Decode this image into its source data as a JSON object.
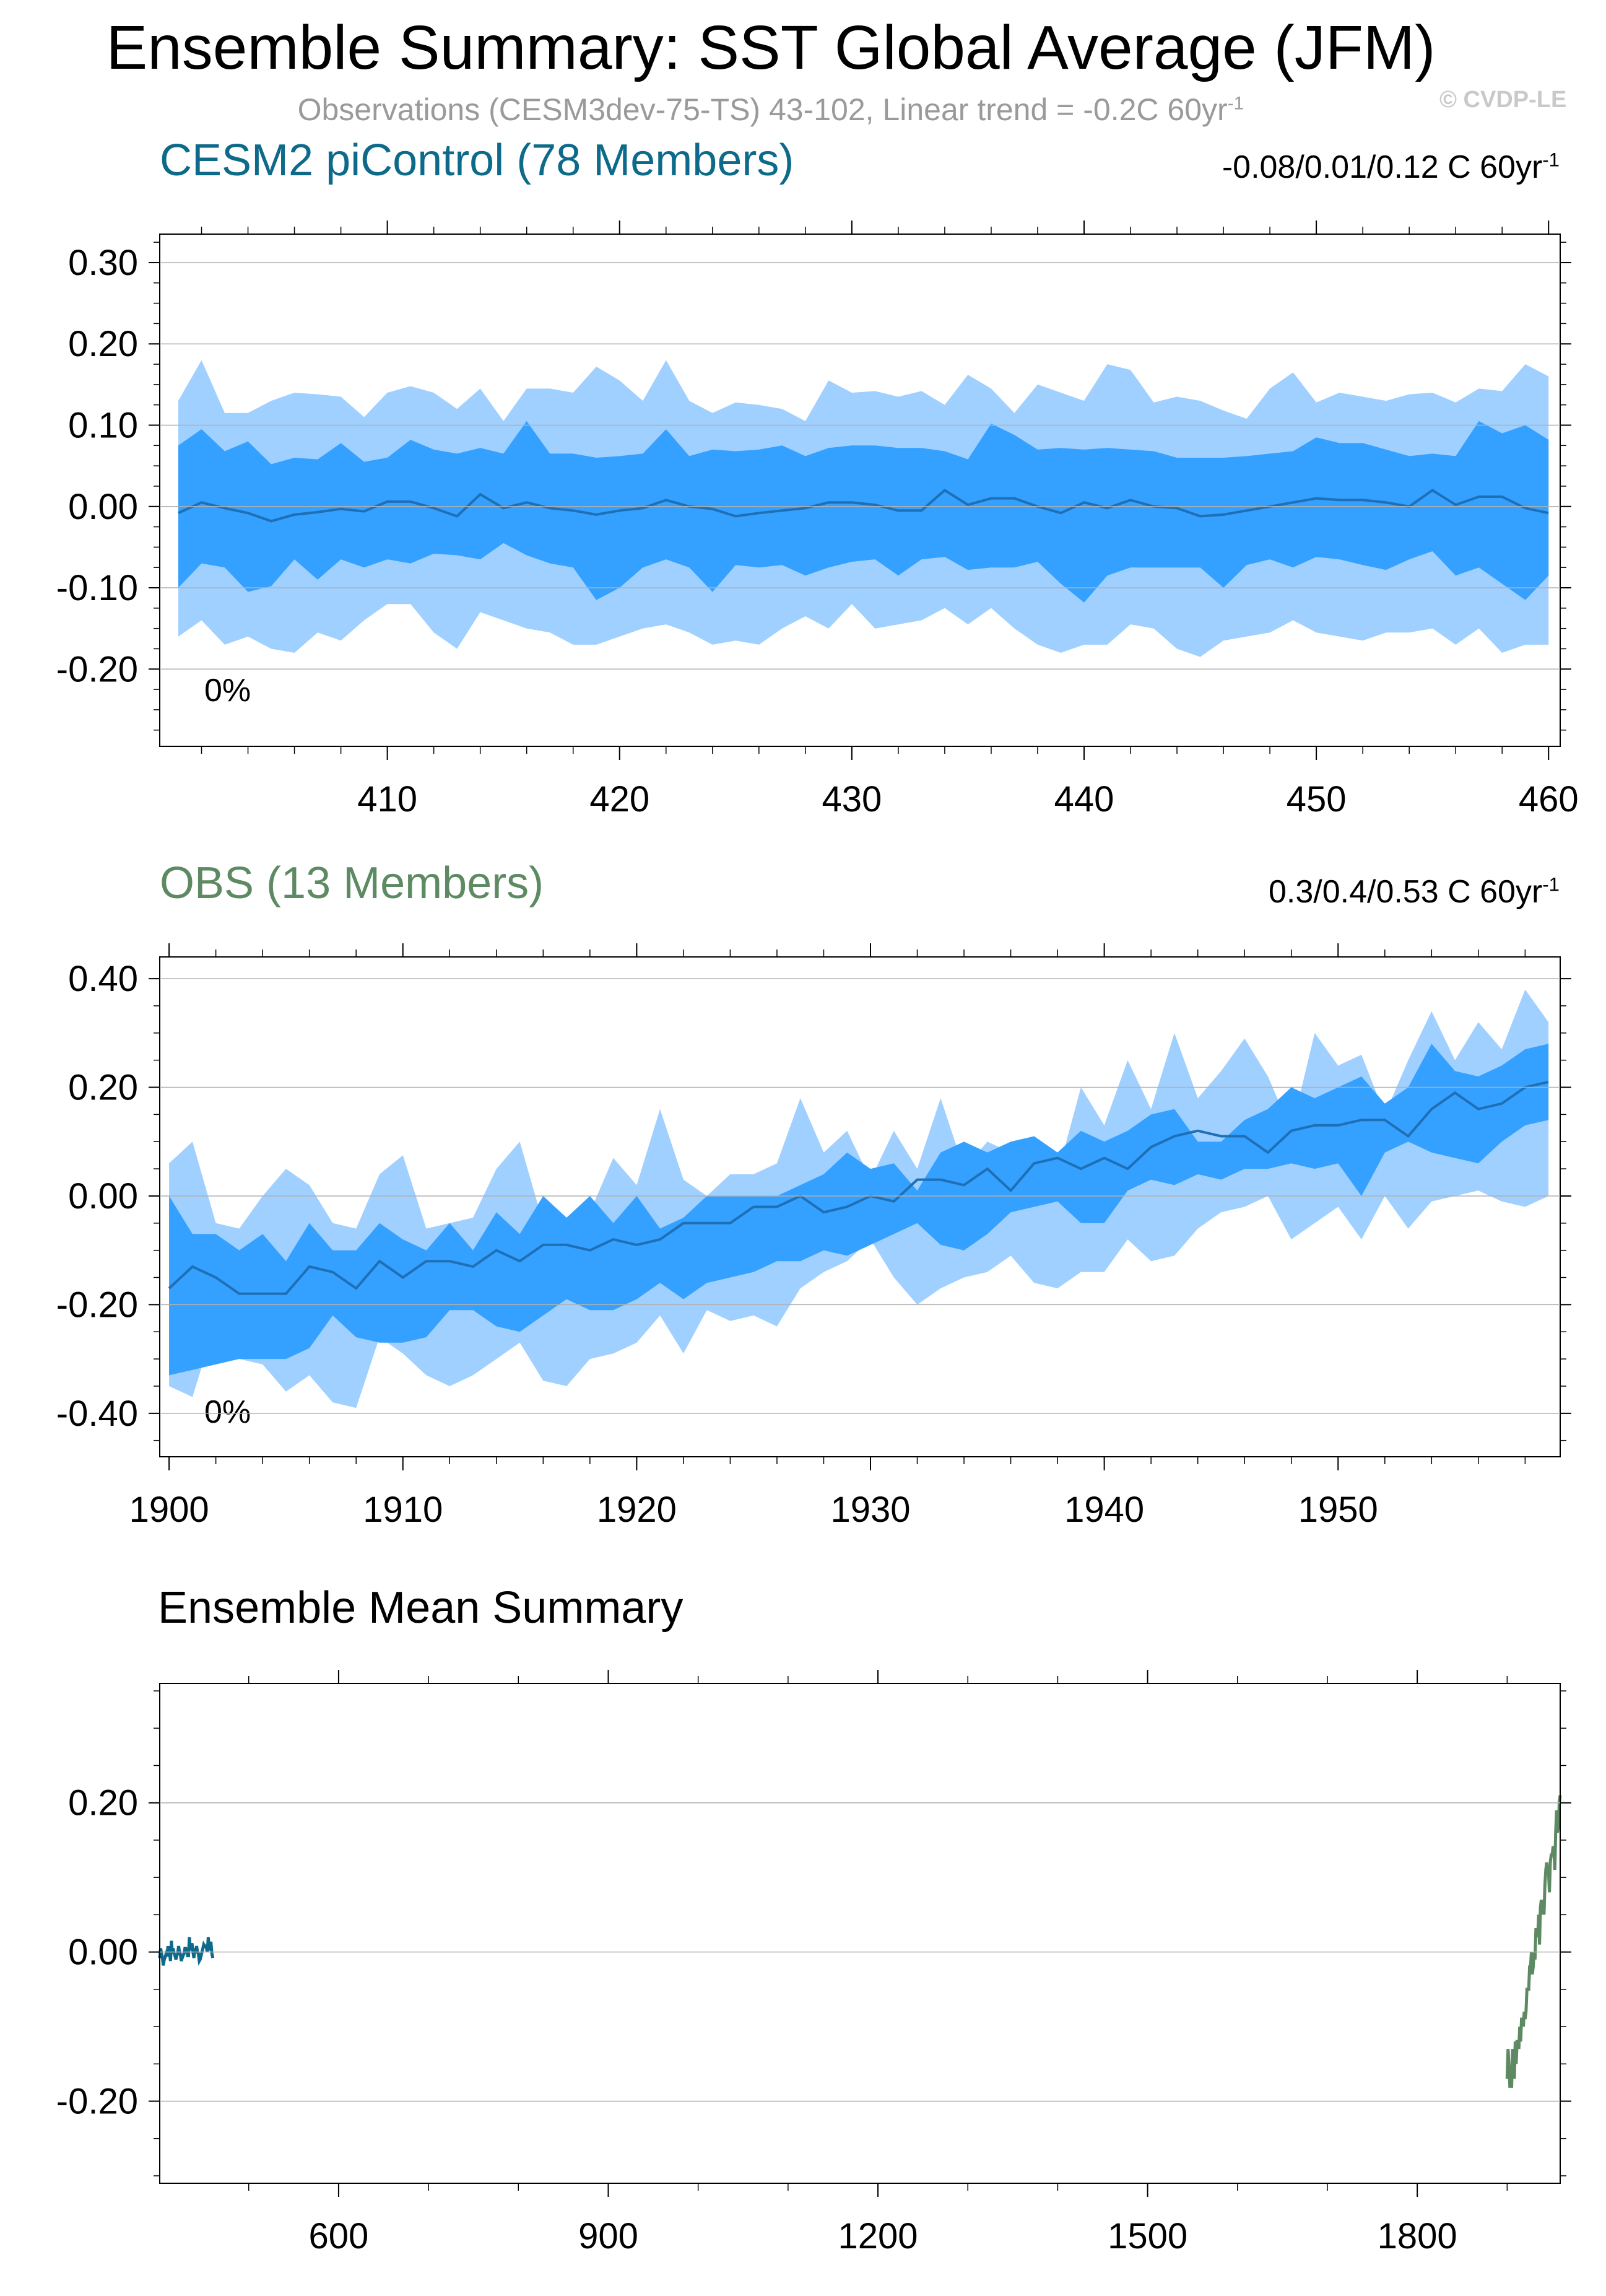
{
  "title": "Ensemble Summary: SST Global Average (JFM)",
  "subtitle": "Observations (CESM3dev-75-TS) 43-102, Linear trend = -0.2C 60yr",
  "subtitle_exp": "-1",
  "copyright": "© CVDP-LE",
  "colors": {
    "outer_band": "#9fd0ff",
    "inner_band": "#34a0ff",
    "mean_line": "#1f6fb5",
    "cesm_title": "#0e6a8a",
    "obs_title": "#5d8a62",
    "cesm_line": "#0e6a8a",
    "obs_line": "#5d8a62"
  },
  "panels": [
    {
      "title": "CESM2 piControl (78 Members)",
      "trend": "-0.08/0.01/0.12 C 60yr",
      "trend_exp": "-1",
      "percent": "0%"
    },
    {
      "title": "OBS (13 Members)",
      "trend": "0.3/0.4/0.53 C 60yr",
      "trend_exp": "-1",
      "percent": "0%"
    },
    {
      "title": "Ensemble Mean Summary"
    }
  ],
  "chart_data": [
    {
      "type": "area",
      "title": "CESM2 piControl (78 Members)",
      "x": [
        401,
        402,
        403,
        404,
        405,
        406,
        407,
        408,
        409,
        410,
        411,
        412,
        413,
        414,
        415,
        416,
        417,
        418,
        419,
        420,
        421,
        422,
        423,
        424,
        425,
        426,
        427,
        428,
        429,
        430,
        431,
        432,
        433,
        434,
        435,
        436,
        437,
        438,
        439,
        440,
        441,
        442,
        443,
        444,
        445,
        446,
        447,
        448,
        449,
        450,
        451,
        452,
        453,
        454,
        455,
        456,
        457,
        458,
        459,
        460
      ],
      "xlim": [
        400.2,
        460.5
      ],
      "ylim": [
        -0.295,
        0.335
      ],
      "xticks": [
        410,
        420,
        430,
        440,
        450,
        460
      ],
      "yticks": [
        -0.2,
        -0.1,
        0.0,
        0.1,
        0.2,
        0.3
      ],
      "ytick_labels": [
        "-0.20",
        "-0.10",
        "0.00",
        "0.10",
        "0.20",
        "0.30"
      ],
      "series": [
        {
          "role": "outer-upper",
          "values": [
            0.13,
            0.18,
            0.115,
            0.115,
            0.13,
            0.14,
            0.138,
            0.135,
            0.11,
            0.14,
            0.148,
            0.14,
            0.12,
            0.145,
            0.105,
            0.145,
            0.145,
            0.14,
            0.172,
            0.155,
            0.13,
            0.18,
            0.13,
            0.115,
            0.128,
            0.125,
            0.12,
            0.105,
            0.155,
            0.14,
            0.142,
            0.135,
            0.142,
            0.125,
            0.162,
            0.145,
            0.115,
            0.15,
            0.14,
            0.13,
            0.175,
            0.168,
            0.128,
            0.135,
            0.13,
            0.118,
            0.108,
            0.145,
            0.165,
            0.128,
            0.14,
            0.135,
            0.13,
            0.138,
            0.14,
            0.128,
            0.145,
            0.142,
            0.175,
            0.16
          ]
        },
        {
          "role": "inner-upper",
          "values": [
            0.075,
            0.095,
            0.068,
            0.08,
            0.052,
            0.06,
            0.058,
            0.078,
            0.055,
            0.06,
            0.082,
            0.07,
            0.065,
            0.072,
            0.065,
            0.105,
            0.065,
            0.065,
            0.06,
            0.062,
            0.065,
            0.095,
            0.062,
            0.07,
            0.068,
            0.07,
            0.075,
            0.062,
            0.072,
            0.075,
            0.075,
            0.072,
            0.072,
            0.068,
            0.058,
            0.102,
            0.088,
            0.07,
            0.072,
            0.07,
            0.072,
            0.07,
            0.068,
            0.06,
            0.06,
            0.06,
            0.062,
            0.065,
            0.068,
            0.085,
            0.078,
            0.078,
            0.07,
            0.062,
            0.065,
            0.062,
            0.105,
            0.09,
            0.1,
            0.082
          ]
        },
        {
          "role": "mean",
          "values": [
            -0.008,
            0.005,
            -0.002,
            -0.008,
            -0.018,
            -0.01,
            -0.007,
            -0.003,
            -0.006,
            0.006,
            0.006,
            -0.002,
            -0.012,
            0.015,
            -0.002,
            0.005,
            -0.002,
            -0.005,
            -0.01,
            -0.005,
            -0.002,
            0.008,
            0.0,
            -0.003,
            -0.012,
            -0.008,
            -0.005,
            -0.002,
            0.005,
            0.005,
            0.002,
            -0.005,
            -0.005,
            0.02,
            0.002,
            0.01,
            0.01,
            0.0,
            -0.008,
            0.005,
            -0.002,
            0.008,
            0.0,
            -0.002,
            -0.012,
            -0.01,
            -0.005,
            0.0,
            0.005,
            0.01,
            0.008,
            0.008,
            0.005,
            0.0,
            0.02,
            0.002,
            0.012,
            0.012,
            -0.002,
            -0.008
          ]
        },
        {
          "role": "inner-lower",
          "values": [
            -0.1,
            -0.07,
            -0.075,
            -0.105,
            -0.098,
            -0.065,
            -0.09,
            -0.065,
            -0.075,
            -0.065,
            -0.07,
            -0.058,
            -0.06,
            -0.065,
            -0.045,
            -0.06,
            -0.07,
            -0.075,
            -0.115,
            -0.1,
            -0.075,
            -0.065,
            -0.075,
            -0.105,
            -0.072,
            -0.075,
            -0.072,
            -0.085,
            -0.075,
            -0.068,
            -0.065,
            -0.085,
            -0.065,
            -0.062,
            -0.078,
            -0.075,
            -0.075,
            -0.068,
            -0.095,
            -0.118,
            -0.085,
            -0.075,
            -0.075,
            -0.075,
            -0.075,
            -0.1,
            -0.072,
            -0.065,
            -0.075,
            -0.062,
            -0.065,
            -0.072,
            -0.078,
            -0.065,
            -0.055,
            -0.085,
            -0.075,
            -0.095,
            -0.115,
            -0.085
          ]
        },
        {
          "role": "outer-lower",
          "values": [
            -0.16,
            -0.14,
            -0.17,
            -0.16,
            -0.175,
            -0.18,
            -0.155,
            -0.165,
            -0.14,
            -0.12,
            -0.12,
            -0.155,
            -0.175,
            -0.13,
            -0.14,
            -0.15,
            -0.155,
            -0.17,
            -0.17,
            -0.16,
            -0.15,
            -0.145,
            -0.155,
            -0.17,
            -0.165,
            -0.17,
            -0.15,
            -0.135,
            -0.15,
            -0.12,
            -0.15,
            -0.145,
            -0.14,
            -0.125,
            -0.145,
            -0.125,
            -0.15,
            -0.17,
            -0.18,
            -0.17,
            -0.17,
            -0.145,
            -0.15,
            -0.175,
            -0.185,
            -0.165,
            -0.16,
            -0.155,
            -0.14,
            -0.155,
            -0.16,
            -0.165,
            -0.155,
            -0.155,
            -0.15,
            -0.17,
            -0.15,
            -0.18,
            -0.17,
            -0.17
          ]
        }
      ]
    },
    {
      "type": "area",
      "title": "OBS (13 Members)",
      "x": [
        1900,
        1901,
        1902,
        1903,
        1904,
        1905,
        1906,
        1907,
        1908,
        1909,
        1910,
        1911,
        1912,
        1913,
        1914,
        1915,
        1916,
        1917,
        1918,
        1919,
        1920,
        1921,
        1922,
        1923,
        1924,
        1925,
        1926,
        1927,
        1928,
        1929,
        1930,
        1931,
        1932,
        1933,
        1934,
        1935,
        1936,
        1937,
        1938,
        1939,
        1940,
        1941,
        1942,
        1943,
        1944,
        1945,
        1946,
        1947,
        1948,
        1949,
        1950,
        1951,
        1952,
        1953,
        1954,
        1955,
        1956,
        1957,
        1958,
        1959
      ],
      "xlim": [
        1899.6,
        1959.5
      ],
      "ylim": [
        -0.48,
        0.44
      ],
      "xticks": [
        1900,
        1910,
        1920,
        1930,
        1940,
        1950
      ],
      "yticks": [
        -0.4,
        -0.2,
        0.0,
        0.2,
        0.4
      ],
      "ytick_labels": [
        "-0.40",
        "-0.20",
        "0.00",
        "0.20",
        "0.40"
      ],
      "series": [
        {
          "role": "outer-upper",
          "values": [
            0.06,
            0.1,
            -0.05,
            -0.06,
            0.0,
            0.05,
            0.02,
            -0.05,
            -0.06,
            0.04,
            0.075,
            -0.06,
            -0.05,
            -0.04,
            0.05,
            0.1,
            -0.05,
            -0.05,
            -0.03,
            0.07,
            0.02,
            0.16,
            0.03,
            0.0,
            0.04,
            0.04,
            0.06,
            0.18,
            0.08,
            0.12,
            0.03,
            0.12,
            0.05,
            0.18,
            0.05,
            0.1,
            0.08,
            0.1,
            0.04,
            0.2,
            0.13,
            0.25,
            0.16,
            0.3,
            0.18,
            0.23,
            0.29,
            0.22,
            0.12,
            0.3,
            0.24,
            0.26,
            0.15,
            0.25,
            0.34,
            0.25,
            0.32,
            0.27,
            0.38,
            0.32
          ]
        },
        {
          "role": "inner-upper",
          "values": [
            0.0,
            -0.07,
            -0.07,
            -0.1,
            -0.07,
            -0.12,
            -0.05,
            -0.1,
            -0.1,
            -0.05,
            -0.08,
            -0.1,
            -0.05,
            -0.1,
            -0.03,
            -0.07,
            0.0,
            -0.04,
            0.0,
            -0.05,
            0.0,
            -0.06,
            -0.04,
            0.0,
            0.0,
            0.0,
            0.0,
            0.02,
            0.04,
            0.08,
            0.05,
            0.06,
            0.01,
            0.08,
            0.1,
            0.08,
            0.1,
            0.11,
            0.08,
            0.12,
            0.1,
            0.12,
            0.15,
            0.16,
            0.1,
            0.1,
            0.14,
            0.16,
            0.2,
            0.18,
            0.2,
            0.22,
            0.17,
            0.2,
            0.28,
            0.23,
            0.22,
            0.24,
            0.27,
            0.28
          ]
        },
        {
          "role": "mean",
          "values": [
            -0.17,
            -0.13,
            -0.15,
            -0.18,
            -0.18,
            -0.18,
            -0.13,
            -0.14,
            -0.17,
            -0.12,
            -0.15,
            -0.12,
            -0.12,
            -0.13,
            -0.1,
            -0.12,
            -0.09,
            -0.09,
            -0.1,
            -0.08,
            -0.09,
            -0.08,
            -0.05,
            -0.05,
            -0.05,
            -0.02,
            -0.02,
            0.0,
            -0.03,
            -0.02,
            0.0,
            -0.01,
            0.03,
            0.03,
            0.02,
            0.05,
            0.01,
            0.06,
            0.07,
            0.05,
            0.07,
            0.05,
            0.09,
            0.11,
            0.12,
            0.11,
            0.11,
            0.08,
            0.12,
            0.13,
            0.13,
            0.14,
            0.14,
            0.11,
            0.16,
            0.19,
            0.16,
            0.17,
            0.2,
            0.21
          ]
        },
        {
          "role": "inner-lower",
          "values": [
            -0.33,
            -0.32,
            -0.31,
            -0.3,
            -0.3,
            -0.3,
            -0.28,
            -0.22,
            -0.26,
            -0.27,
            -0.27,
            -0.26,
            -0.21,
            -0.21,
            -0.24,
            -0.25,
            -0.22,
            -0.19,
            -0.21,
            -0.21,
            -0.19,
            -0.16,
            -0.19,
            -0.16,
            -0.15,
            -0.14,
            -0.12,
            -0.12,
            -0.1,
            -0.11,
            -0.09,
            -0.07,
            -0.05,
            -0.09,
            -0.1,
            -0.07,
            -0.03,
            -0.02,
            -0.01,
            -0.05,
            -0.05,
            0.01,
            0.03,
            0.02,
            0.04,
            0.03,
            0.05,
            0.05,
            0.06,
            0.05,
            0.06,
            0.0,
            0.08,
            0.1,
            0.08,
            0.07,
            0.06,
            0.1,
            0.13,
            0.14
          ]
        },
        {
          "role": "outer-lower",
          "values": [
            -0.35,
            -0.37,
            -0.23,
            -0.3,
            -0.31,
            -0.36,
            -0.33,
            -0.38,
            -0.39,
            -0.26,
            -0.29,
            -0.33,
            -0.35,
            -0.33,
            -0.3,
            -0.27,
            -0.34,
            -0.35,
            -0.3,
            -0.29,
            -0.27,
            -0.22,
            -0.29,
            -0.21,
            -0.23,
            -0.22,
            -0.24,
            -0.17,
            -0.14,
            -0.12,
            -0.08,
            -0.15,
            -0.2,
            -0.17,
            -0.15,
            -0.14,
            -0.11,
            -0.16,
            -0.17,
            -0.14,
            -0.14,
            -0.08,
            -0.12,
            -0.11,
            -0.06,
            -0.03,
            -0.02,
            0.0,
            -0.08,
            -0.05,
            -0.02,
            -0.08,
            0.0,
            -0.06,
            -0.01,
            0.0,
            0.01,
            -0.01,
            -0.02,
            0.0
          ]
        }
      ]
    },
    {
      "type": "line",
      "title": "Ensemble Mean Summary",
      "xlim": [
        401,
        1959
      ],
      "ylim": [
        -0.31,
        0.36
      ],
      "xticks": [
        600,
        900,
        1200,
        1500,
        1800
      ],
      "yticks": [
        -0.2,
        0.0,
        0.2
      ],
      "ytick_labels": [
        "-0.20",
        "0.00",
        "0.20"
      ],
      "series": [
        {
          "name": "CESM2 piControl",
          "source": 0
        },
        {
          "name": "OBS",
          "source": 1
        }
      ]
    }
  ]
}
